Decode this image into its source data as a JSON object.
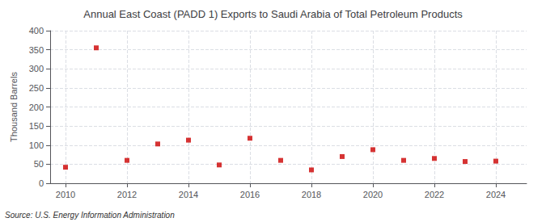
{
  "chart_data": {
    "type": "scatter",
    "title": "Annual East Coast (PADD 1) Exports to Saudi Arabia of Total Petroleum Products",
    "ylabel": "Thousand Barrels",
    "annotations": [
      "Source: U.S. Energy Information Administration"
    ],
    "x": [
      2010,
      2011,
      2012,
      2013,
      2014,
      2015,
      2016,
      2017,
      2018,
      2019,
      2020,
      2021,
      2022,
      2023,
      2024
    ],
    "values": [
      42,
      355,
      60,
      103,
      113,
      48,
      118,
      60,
      35,
      70,
      88,
      60,
      65,
      57,
      58
    ],
    "color": "#cc0000",
    "marker": "square",
    "xlim": [
      2009.5,
      2025
    ],
    "xticks": [
      2010,
      2012,
      2014,
      2016,
      2018,
      2020,
      2022,
      2024
    ],
    "ylim": [
      0,
      400
    ],
    "yticks": [
      0,
      50,
      100,
      150,
      200,
      250,
      300,
      350,
      400
    ],
    "grid": true
  }
}
